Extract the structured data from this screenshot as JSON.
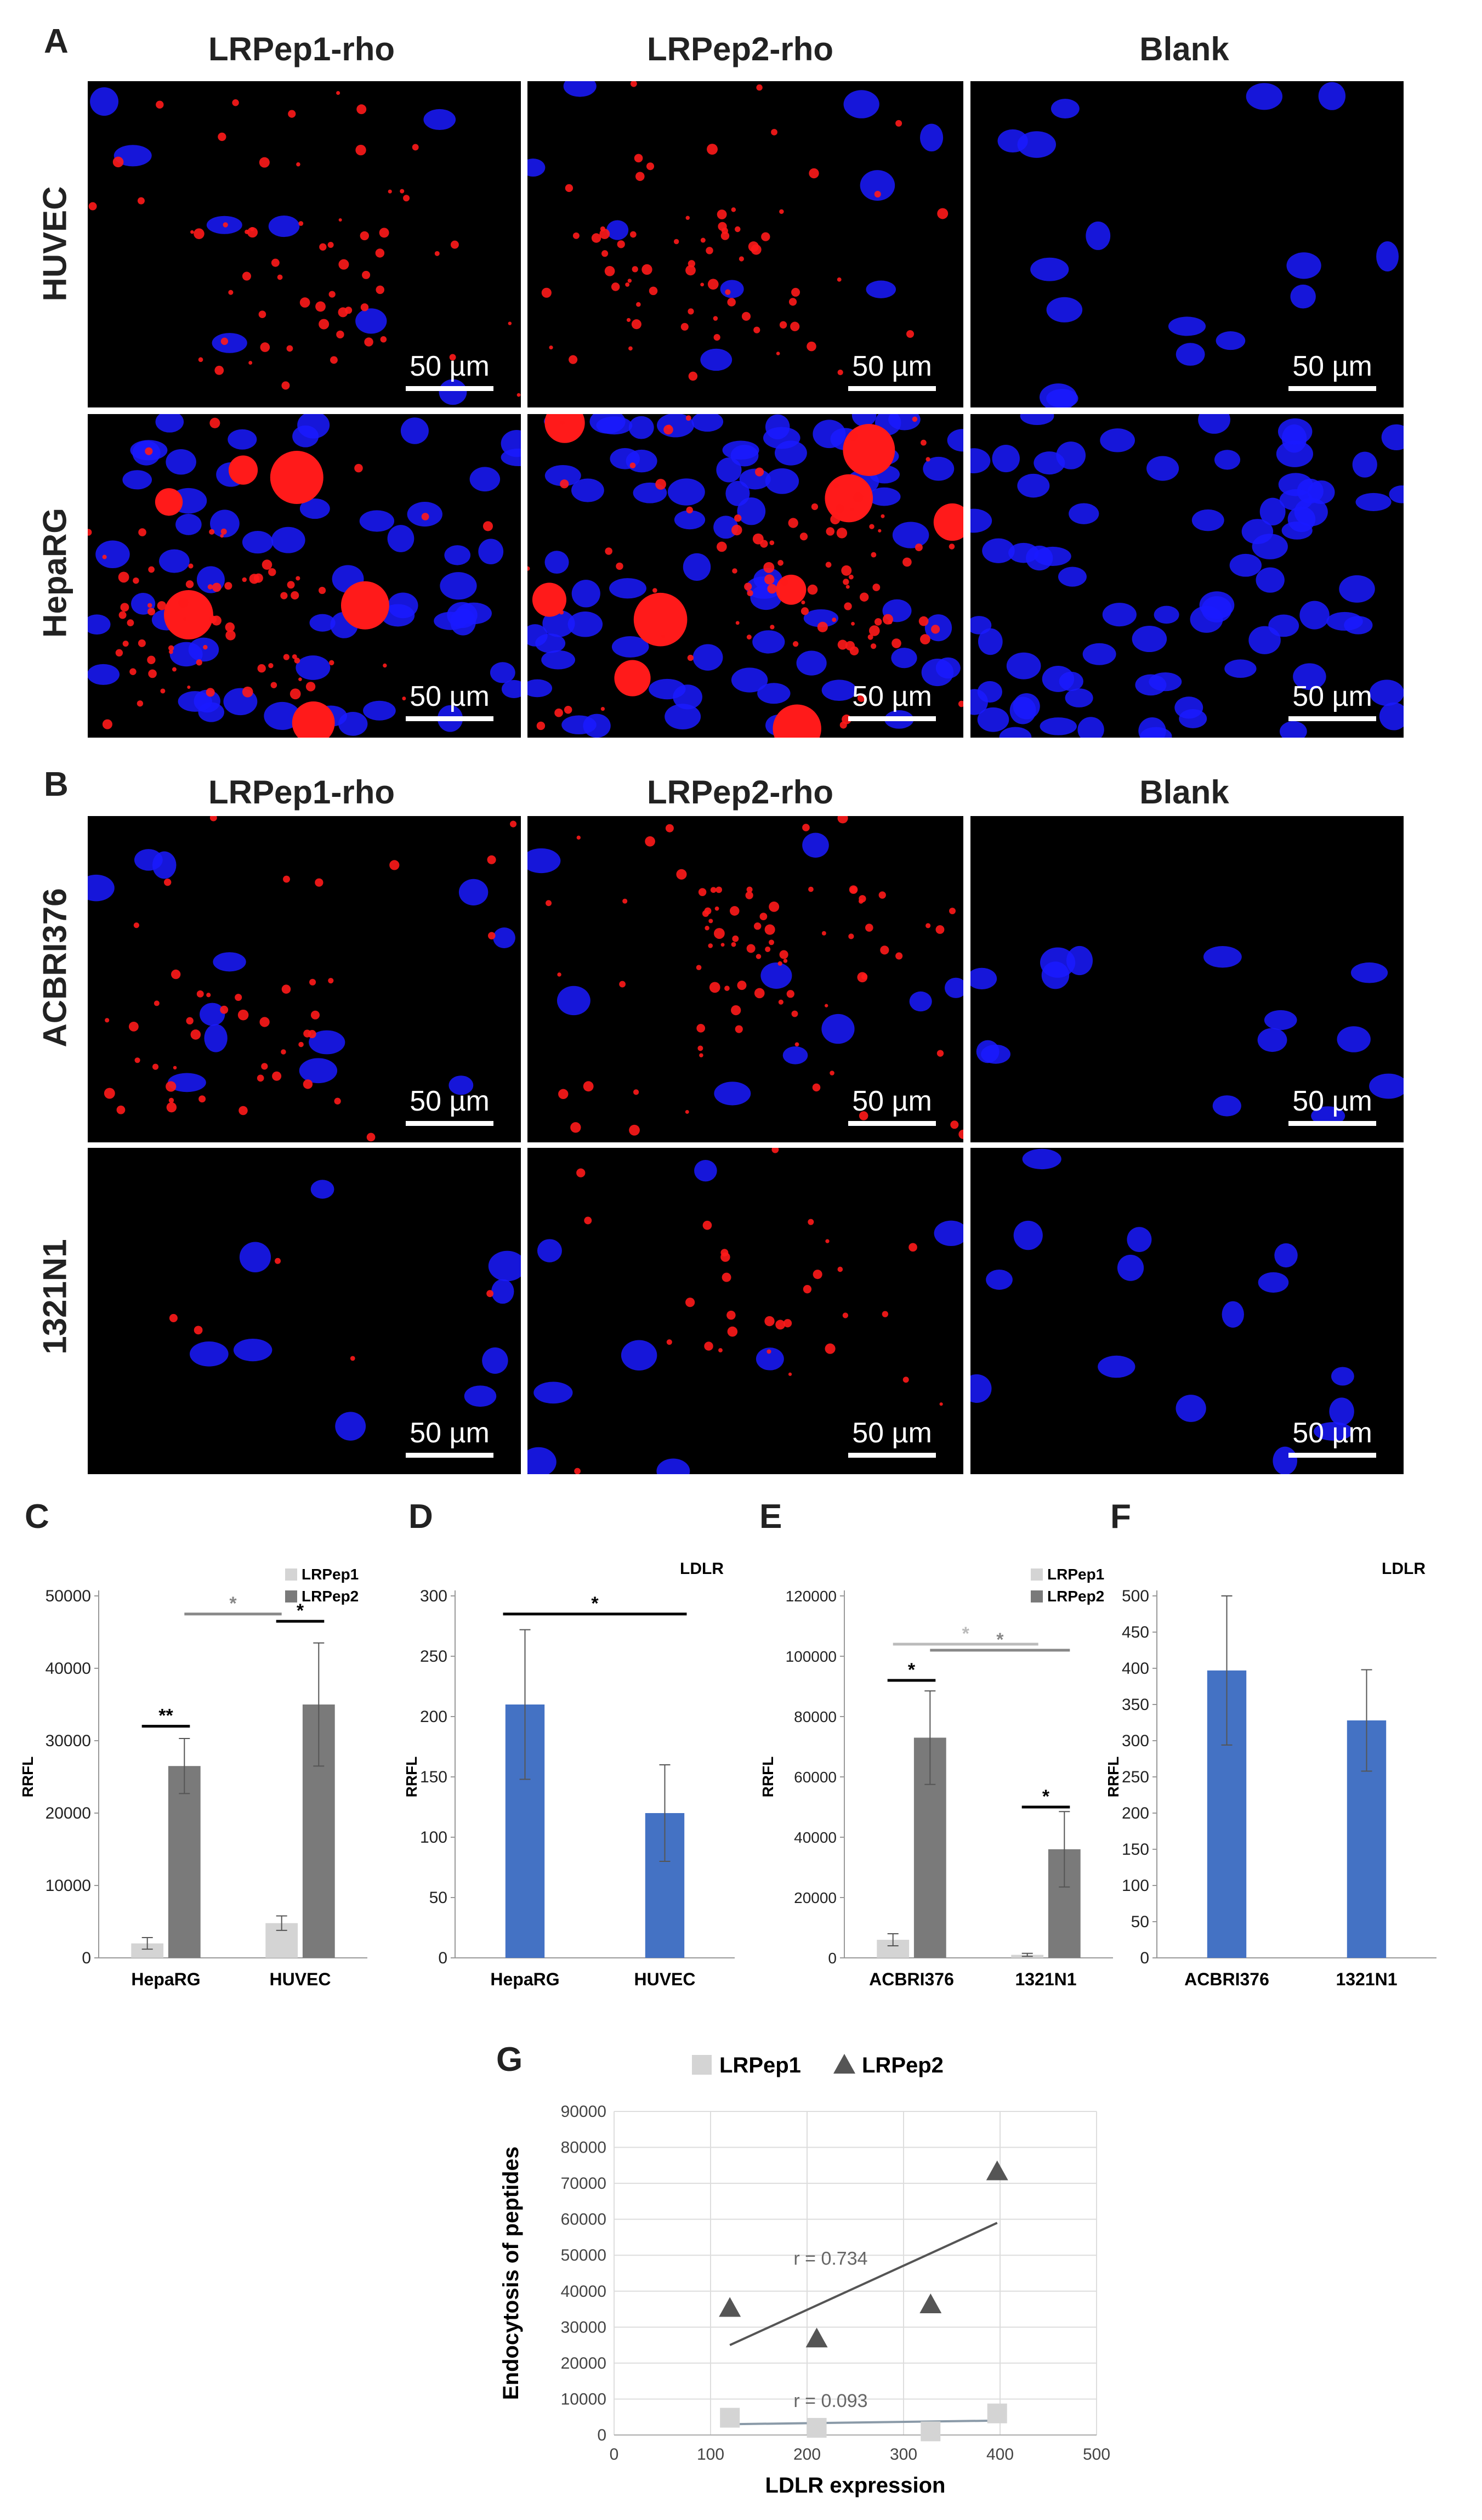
{
  "panels": {
    "A": {
      "label": "A",
      "columns": [
        "LRPep1-rho",
        "LRPep2-rho",
        "Blank"
      ],
      "rows": [
        "HUVEC",
        "HepaRG"
      ],
      "scale_bar": "50 µm"
    },
    "B": {
      "label": "B",
      "columns": [
        "LRPep1-rho",
        "LRPep2-rho",
        "Blank"
      ],
      "rows": [
        "ACBRI376",
        "1321N1"
      ],
      "scale_bar": "50 µm"
    }
  },
  "colors": {
    "nucleus": "#1a1aff",
    "peptide": "#ff1a1a",
    "lrpep1": "#d4d4d4",
    "lrpep2": "#7a7a7a",
    "ldlr": "#4472c4",
    "axis": "#999999"
  },
  "chart_data": [
    {
      "panel": "C",
      "type": "bar",
      "title": "",
      "ylabel": "RRFL",
      "categories": [
        "HepaRG",
        "HUVEC"
      ],
      "ylim": [
        0,
        50000
      ],
      "yticks": [
        0,
        10000,
        20000,
        30000,
        40000,
        50000
      ],
      "series": [
        {
          "name": "LRPep1",
          "values": [
            2000,
            4800
          ],
          "errors": [
            800,
            1000
          ]
        },
        {
          "name": "LRPep2",
          "values": [
            26500,
            35000
          ],
          "errors": [
            3800,
            8500
          ]
        }
      ],
      "legend": "top-right",
      "significance": [
        {
          "label": "**",
          "level": 32000,
          "shade": "black"
        },
        {
          "label": "*",
          "level": 46500,
          "shade": "black"
        },
        {
          "label": "*",
          "level": 47500,
          "shade": "grey"
        }
      ]
    },
    {
      "panel": "D",
      "type": "bar",
      "title": "LDLR",
      "ylabel": "RRFL",
      "categories": [
        "HepaRG",
        "HUVEC"
      ],
      "ylim": [
        0,
        300
      ],
      "yticks": [
        0,
        50,
        100,
        150,
        200,
        250,
        300
      ],
      "series": [
        {
          "name": "",
          "values": [
            210,
            120
          ],
          "errors": [
            62,
            40
          ]
        }
      ],
      "significance": [
        {
          "label": "*",
          "level": 285,
          "shade": "black"
        }
      ]
    },
    {
      "panel": "E",
      "type": "bar",
      "title": "",
      "ylabel": "RRFL",
      "categories": [
        "ACBRI376",
        "1321N1"
      ],
      "ylim": [
        0,
        120000
      ],
      "yticks": [
        0,
        20000,
        40000,
        60000,
        80000,
        100000,
        120000
      ],
      "series": [
        {
          "name": "LRPep1",
          "values": [
            6000,
            1000
          ],
          "errors": [
            2000,
            500
          ]
        },
        {
          "name": "LRPep2",
          "values": [
            73000,
            36000
          ],
          "errors": [
            15500,
            12500
          ]
        }
      ],
      "legend": "top-right",
      "significance": [
        {
          "label": "*",
          "level": 92000,
          "shade": "black"
        },
        {
          "label": "*",
          "level": 50000,
          "shade": "black"
        },
        {
          "label": "*",
          "level": 104000,
          "shade": "lightgrey"
        },
        {
          "label": "*",
          "level": 102000,
          "shade": "grey"
        }
      ]
    },
    {
      "panel": "F",
      "type": "bar",
      "title": "LDLR",
      "ylabel": "RRFL",
      "categories": [
        "ACBRI376",
        "1321N1"
      ],
      "ylim": [
        0,
        500
      ],
      "yticks": [
        0,
        50,
        100,
        150,
        200,
        250,
        300,
        350,
        400,
        450,
        500
      ],
      "series": [
        {
          "name": "",
          "values": [
            397,
            328
          ],
          "errors": [
            103,
            70
          ]
        }
      ]
    },
    {
      "panel": "G",
      "type": "scatter",
      "title": "",
      "xlabel": "LDLR expression",
      "ylabel": "Endocytosis of peptides",
      "xlim": [
        0,
        500
      ],
      "ylim": [
        0,
        90000
      ],
      "xticks": [
        0,
        100,
        200,
        300,
        400,
        500
      ],
      "yticks": [
        0,
        10000,
        20000,
        30000,
        40000,
        50000,
        60000,
        70000,
        80000,
        90000
      ],
      "grid": true,
      "legend": "top",
      "series": [
        {
          "name": "LRPep1",
          "marker": "square",
          "x": [
            120,
            210,
            328,
            397
          ],
          "y": [
            4800,
            2000,
            1000,
            6000
          ],
          "trend": {
            "x": [
              120,
              397
            ],
            "y": [
              3000,
              4000
            ]
          },
          "r_label": "r = 0.093"
        },
        {
          "name": "LRPep2",
          "marker": "triangle",
          "x": [
            120,
            210,
            328,
            397
          ],
          "y": [
            35000,
            26500,
            36000,
            73000
          ],
          "trend": {
            "x": [
              120,
              397
            ],
            "y": [
              25000,
              59000
            ]
          },
          "r_label": "r = 0.734"
        }
      ]
    }
  ]
}
